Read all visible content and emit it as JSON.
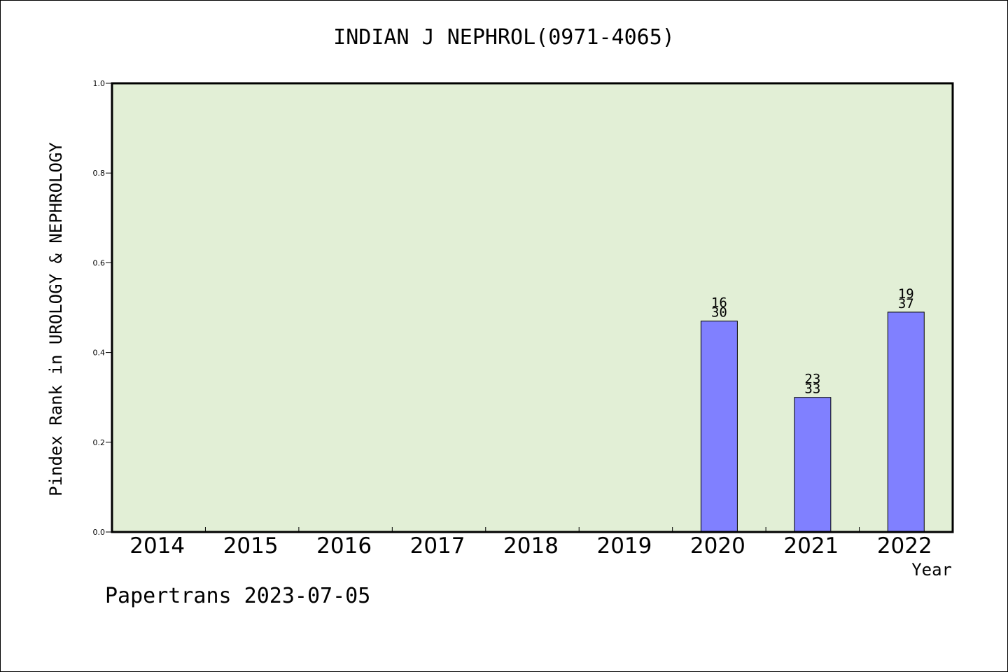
{
  "chart_data": {
    "type": "bar",
    "title": "INDIAN J NEPHROL(0971-4065)",
    "xlabel": "Year",
    "ylabel": "Pindex Rank in UROLOGY & NEPHROLOGY",
    "categories": [
      "2014",
      "2015",
      "2016",
      "2017",
      "2018",
      "2019",
      "2020",
      "2021",
      "2022"
    ],
    "values": [
      null,
      null,
      null,
      null,
      null,
      null,
      0.47,
      0.3,
      0.49
    ],
    "bar_labels": [
      null,
      null,
      null,
      null,
      null,
      null,
      {
        "rank": "16",
        "total": "30"
      },
      {
        "rank": "23",
        "total": "33"
      },
      {
        "rank": "19",
        "total": "37"
      }
    ],
    "ylim": [
      0,
      1.0
    ],
    "yticks": [
      "0.0",
      "0.2",
      "0.4",
      "0.6",
      "0.8",
      "1.0"
    ],
    "grid": false,
    "colors": {
      "plot_bg": "#e2efd6",
      "bar": "#8080ff",
      "bar_edge": "#000000"
    }
  },
  "footer": {
    "text": "Papertrans 2023-07-05"
  }
}
